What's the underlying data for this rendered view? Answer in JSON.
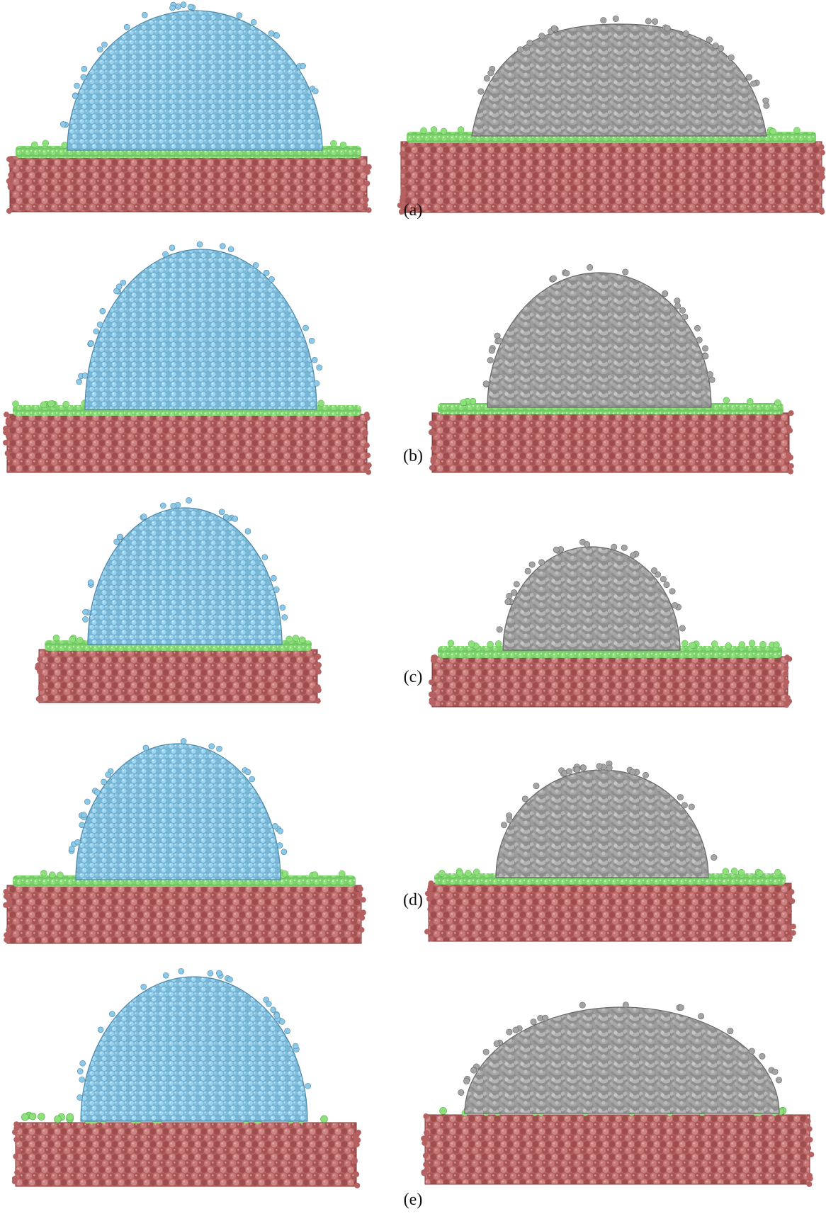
{
  "colors": {
    "substrate": "#b66161",
    "substrate_dark": "#7f3939",
    "grafted_layer": "#8ee07a",
    "grafted_layer_dark": "#4ca648",
    "water_droplet": "#8cc9e8",
    "water_droplet_dark": "#4d86a7",
    "polymer_droplet": "#a4a4a4",
    "polymer_droplet_dark": "#666666"
  },
  "panels": [
    {
      "label": "(a)"
    },
    {
      "label": "(b)"
    },
    {
      "label": "(c)"
    },
    {
      "label": "(d)"
    },
    {
      "label": "(e)"
    }
  ]
}
